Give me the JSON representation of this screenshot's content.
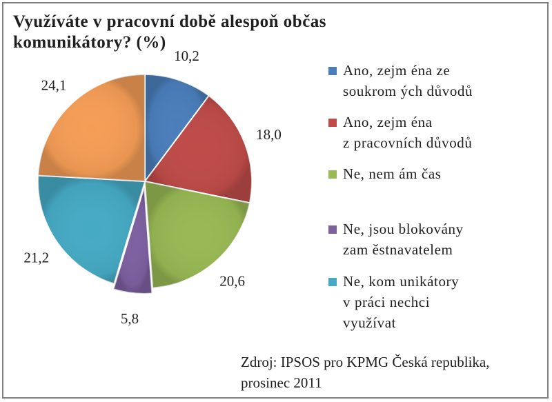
{
  "chart_data": {
    "type": "pie",
    "title": "Využíváte v pracovní době alespoň občas komunikátory? (%)",
    "categories": [
      "Ano, zejména ze soukromých důvodů",
      "Ano, zejména z pracovních důvodů",
      "Ne, nemám čas",
      "Ne, jsou blokovány zaměstnavatelem",
      "Ne, komunikátory v práci nechci využívat",
      ""
    ],
    "values": [
      10.2,
      18.0,
      20.6,
      5.8,
      21.2,
      24.1
    ],
    "value_labels": [
      "10,2",
      "18,0",
      "20,6",
      "5,8",
      "21,2",
      "24,1"
    ],
    "colors": [
      "#4a7ebb",
      "#be4b48",
      "#98b954",
      "#7d60a0",
      "#46aac5",
      "#f59d56"
    ],
    "legend": [
      {
        "label": "Ano, zejm éna ze\nsoukrom ých důvodů",
        "color": "#4a7ebb"
      },
      {
        "label": "Ano, zejm éna\nz pracovních důvodů",
        "color": "#be4b48"
      },
      {
        "label": "Ne, nem ám čas",
        "color": "#98b954"
      },
      {
        "label": "Ne, jsou blokovány\nzam ěstnavatelem",
        "color": "#7d60a0"
      },
      {
        "label": "Ne, kom unikátory\nv práci nechci\nvyužívat",
        "color": "#46aac5"
      }
    ],
    "legend_position": "right"
  },
  "title_text": "Využíváte v pracovní době alespoň občas\nkomunikátory? (%)",
  "source_text": "Zdroj: IPSOS pro KPMG Česká republika,\nprosinec 2011"
}
